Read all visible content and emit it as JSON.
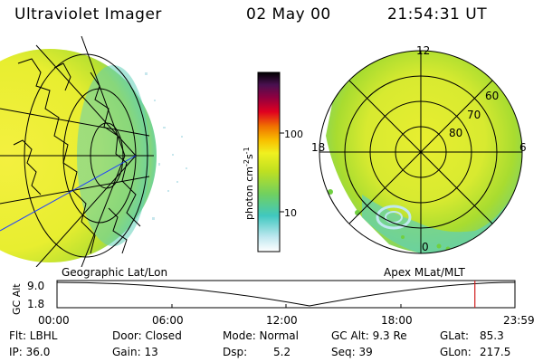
{
  "header": {
    "instrument": "Ultraviolet Imager",
    "date": "02 May 00",
    "time": "21:54:31 UT"
  },
  "left_panel": {
    "label": "Geographic Lat/Lon"
  },
  "right_panel": {
    "label": "Apex MLat/MLT",
    "mlt_labels": {
      "top": "12",
      "left": "18",
      "right": "6",
      "bottom": "0"
    },
    "lat_labels": [
      "60",
      "70",
      "80"
    ]
  },
  "colorbar": {
    "unit_label": "photon cm",
    "unit_exp1": "-2",
    "unit_s": "s",
    "unit_exp2": "-1",
    "ticks": [
      "100",
      "10"
    ]
  },
  "altitude_plot": {
    "y_label": "GC Alt",
    "y_ticks": [
      "9.0",
      "1.8"
    ],
    "x_ticks": [
      "00:00",
      "06:00",
      "12:00",
      "18:00",
      "23:59"
    ],
    "current_marker_hours": 21.9
  },
  "info": {
    "flt": "Flt: LBHL",
    "ip": "IP: 36.0",
    "door": "Door: Closed",
    "gain": "Gain: 13",
    "mode": "Mode: Normal",
    "dsp_label": "Dsp:",
    "dsp_value": "5.2",
    "gc_alt": "GC Alt: 9.3 Re",
    "seq": "Seq: 39",
    "glat_label": "GLat:",
    "glat_value": "85.3",
    "glon_label": "GLon:",
    "glon_value": "217.5"
  },
  "colors": {
    "fill_main": "#f0f030",
    "fill_green": "#b8e020",
    "fill_cyan": "#60d0c0",
    "fill_light": "#c0e8f0"
  }
}
